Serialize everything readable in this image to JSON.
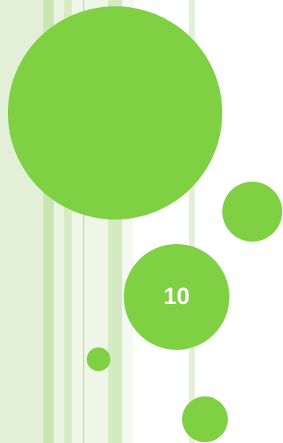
{
  "slide": {
    "number": "10",
    "accent_color": "#7fd043",
    "text_color": "#ffffff"
  }
}
